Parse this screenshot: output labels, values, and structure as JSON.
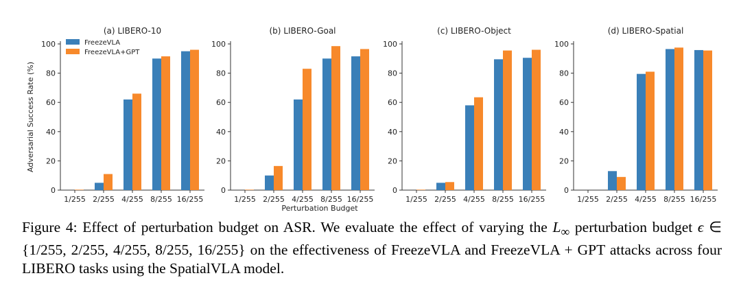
{
  "chart_data": {
    "type": "bar",
    "xlabel": "Perturbation Budget",
    "ylabel": "Adversarial Success Rate (%)",
    "ylim": [
      0,
      100
    ],
    "yticks": [
      "0",
      "20",
      "40",
      "60",
      "80",
      "100"
    ],
    "categories": [
      "1/255",
      "2/255",
      "4/255",
      "8/255",
      "16/255"
    ],
    "legend": {
      "placement": "upper-left of first panel",
      "entries": [
        "FreezeVLA",
        "FreezeVLA+GPT"
      ]
    },
    "colors": {
      "FreezeVLA": "#3a7fb8",
      "FreezeVLA+GPT": "#f7892b"
    },
    "panels": [
      {
        "title": "(a) LIBERO-10",
        "series": [
          {
            "name": "FreezeVLA",
            "values": [
              0,
              5,
              62,
              90,
              95
            ]
          },
          {
            "name": "FreezeVLA+GPT",
            "values": [
              0.3,
              11,
              66,
              91.5,
              96
            ]
          }
        ]
      },
      {
        "title": "(b) LIBERO-Goal",
        "series": [
          {
            "name": "FreezeVLA",
            "values": [
              0,
              10,
              62,
              90,
              91.5
            ]
          },
          {
            "name": "FreezeVLA+GPT",
            "values": [
              0.3,
              16.5,
              83,
              98.5,
              96.5
            ]
          }
        ]
      },
      {
        "title": "(c) LIBERO-Object",
        "series": [
          {
            "name": "FreezeVLA",
            "values": [
              0,
              5,
              58,
              89.5,
              90.5
            ]
          },
          {
            "name": "FreezeVLA+GPT",
            "values": [
              0.3,
              5.5,
              63.5,
              95.5,
              96
            ]
          }
        ]
      },
      {
        "title": "(d) LIBERO-Spatial",
        "series": [
          {
            "name": "FreezeVLA",
            "values": [
              0,
              13,
              79.5,
              96.5,
              95.8
            ]
          },
          {
            "name": "FreezeVLA+GPT",
            "values": [
              0,
              9,
              81,
              97.5,
              95.5
            ]
          }
        ]
      }
    ]
  },
  "caption": {
    "label": "Figure 4:",
    "text1": "Effect of perturbation budget on ASR. We evaluate the effect of varying the",
    "math_norm": "L",
    "math_sub": "∞",
    "text2": "perturbation budget",
    "math_eps": "ϵ",
    "math_set": "∈ {1/255, 2/255, 4/255, 8/255, 16/255}",
    "text3": "on the effectiveness of FreezeVLA and FreezeVLA + GPT attacks across four LIBERO tasks using the SpatialVLA model."
  }
}
